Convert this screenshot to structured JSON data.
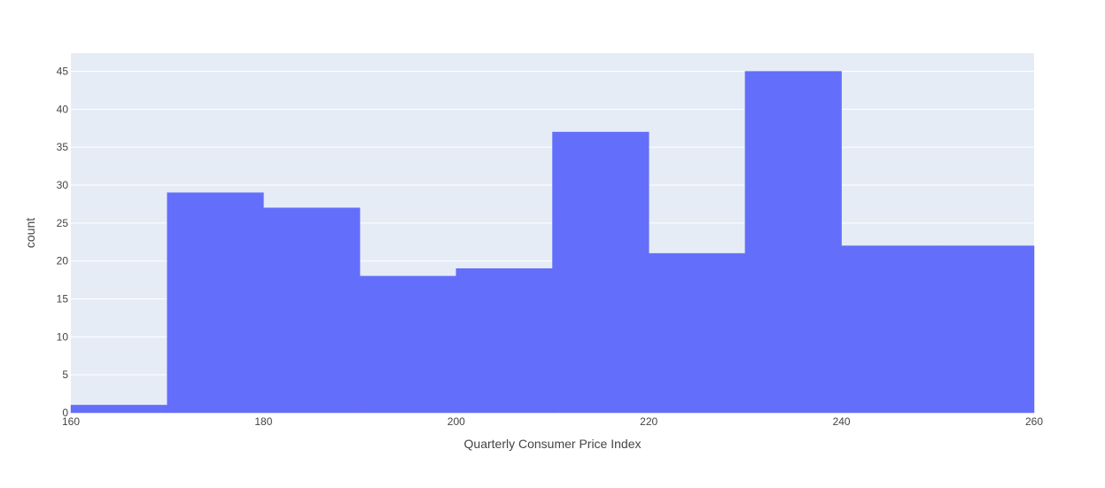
{
  "chart_data": {
    "type": "bar",
    "subtype": "histogram",
    "title": "",
    "xlabel": "Quarterly Consumer Price Index",
    "ylabel": "count",
    "xlim": [
      160,
      260
    ],
    "ylim": [
      0,
      47.4
    ],
    "x_ticks": [
      160,
      180,
      200,
      220,
      240,
      260
    ],
    "y_ticks": [
      0,
      5,
      10,
      15,
      20,
      25,
      30,
      35,
      40,
      45
    ],
    "bins": [
      {
        "start": 160,
        "end": 170,
        "count": 1
      },
      {
        "start": 170,
        "end": 180,
        "count": 29
      },
      {
        "start": 180,
        "end": 190,
        "count": 27
      },
      {
        "start": 190,
        "end": 200,
        "count": 18
      },
      {
        "start": 200,
        "end": 210,
        "count": 19
      },
      {
        "start": 210,
        "end": 220,
        "count": 37
      },
      {
        "start": 220,
        "end": 230,
        "count": 21
      },
      {
        "start": 230,
        "end": 240,
        "count": 45
      },
      {
        "start": 240,
        "end": 250,
        "count": 22
      },
      {
        "start": 250,
        "end": 260,
        "count": 22
      }
    ],
    "grid": true,
    "colors": {
      "bar": "#636efa",
      "plot_background": "#e5ecf6",
      "gridline": "#ffffff",
      "text": "#444444"
    }
  }
}
